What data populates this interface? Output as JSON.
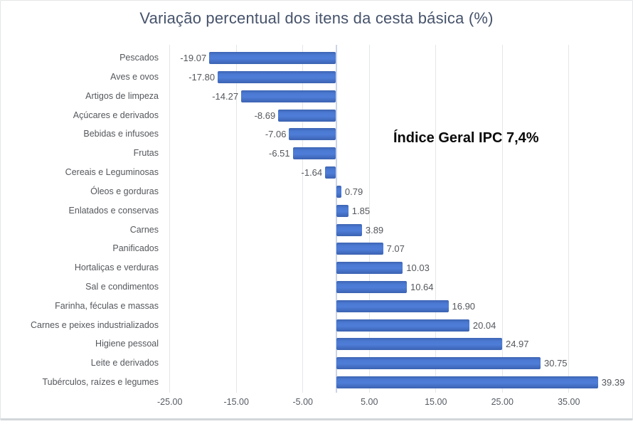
{
  "window": {
    "background": "#ffffff"
  },
  "chart_data": {
    "type": "bar",
    "orientation": "horizontal",
    "title": "Variação percentual dos itens da cesta básica (%)",
    "annotation": "Índice Geral IPC 7,4%",
    "categories": [
      "Pescados",
      "Aves e ovos",
      "Artigos de limpeza",
      "Açúcares e derivados",
      "Bebidas e infusoes",
      "Frutas",
      "Cereais e Leguminosas",
      "Óleos e gorduras",
      "Enlatados e conservas",
      "Carnes",
      "Panificados",
      "Hortaliças e verduras",
      "Sal e condimentos",
      "Farinha, féculas e massas",
      "Carnes e peixes industrializados",
      "Higiene pessoal",
      "Leite e derivados",
      "Tubérculos, raízes e legumes"
    ],
    "values": [
      -19.07,
      -17.8,
      -14.27,
      -8.69,
      -7.06,
      -6.51,
      -1.64,
      0.79,
      1.85,
      3.89,
      7.07,
      10.03,
      10.64,
      16.9,
      20.04,
      24.97,
      30.75,
      39.39
    ],
    "value_labels": [
      "-19.07",
      "-17.80",
      "-14.27",
      "-8.69",
      "-7.06",
      "-6.51",
      "-1.64",
      "0.79",
      "1.85",
      "3.89",
      "7.07",
      "10.03",
      "10.64",
      "16.90",
      "20.04",
      "24.97",
      "30.75",
      "39.39"
    ],
    "x_ticks": [
      -25,
      -15,
      -5,
      5,
      15,
      25,
      35
    ],
    "x_tick_labels": [
      "-25.00",
      "-15.00",
      "-5.00",
      "5.00",
      "15.00",
      "25.00",
      "35.00"
    ],
    "xlim": [
      -25,
      44.5
    ],
    "grid": "vertical-major",
    "legend": "none",
    "data_label_position": "outside-end",
    "colors": {
      "bar": "#4472C4",
      "title": "#46536B",
      "labels": "#54575C",
      "gridline": "#E3E6E8",
      "zero_line": "#CCD4E6",
      "annotation": "#000000",
      "border": "#D2D7DA"
    }
  }
}
